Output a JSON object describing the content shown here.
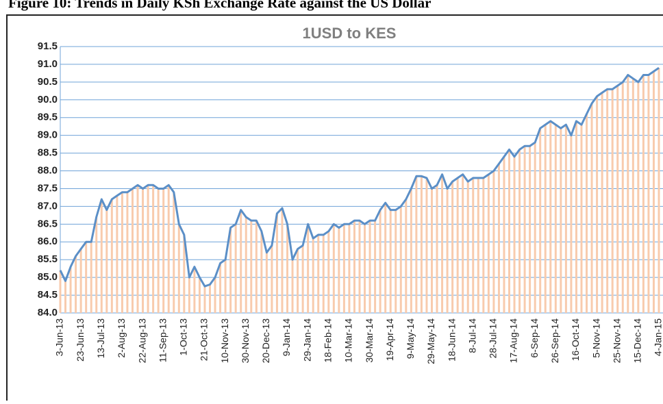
{
  "chart_data": {
    "type": "line",
    "caption": "Figure 10: Trends in Daily KSh Exchange Rate against the US Dollar",
    "title": "1USD to KES",
    "categories": [
      "3-Jun-13",
      null,
      null,
      null,
      "23-Jun-13",
      null,
      null,
      null,
      "13-Jul-13",
      null,
      null,
      null,
      "2-Aug-13",
      null,
      null,
      null,
      "22-Aug-13",
      null,
      null,
      null,
      "11-Sep-13",
      null,
      null,
      null,
      "1-Oct-13",
      null,
      null,
      null,
      "21-Oct-13",
      null,
      null,
      null,
      "10-Nov-13",
      null,
      null,
      null,
      "30-Nov-13",
      null,
      null,
      null,
      "20-Dec-13",
      null,
      null,
      null,
      "9-Jan-14",
      null,
      null,
      null,
      "29-Jan-14",
      null,
      null,
      null,
      "18-Feb-14",
      null,
      null,
      null,
      "10-Mar-14",
      null,
      null,
      null,
      "30-Mar-14",
      null,
      null,
      null,
      "19-Apr-14",
      null,
      null,
      null,
      "9-May-14",
      null,
      null,
      null,
      "29-May-14",
      null,
      null,
      null,
      "18-Jun-14",
      null,
      null,
      null,
      "8-Jul-14",
      null,
      null,
      null,
      "28-Jul-14",
      null,
      null,
      null,
      "17-Aug-14",
      null,
      null,
      null,
      "6-Sep-14",
      null,
      null,
      null,
      "26-Sep-14",
      null,
      null,
      null,
      "16-Oct-14",
      null,
      null,
      null,
      "5-Nov-14",
      null,
      null,
      null,
      "25-Nov-14",
      null,
      null,
      null,
      "15-Dec-14",
      null,
      null,
      null,
      "4-Jan-15"
    ],
    "series": [
      {
        "color": "#5b8fc7",
        "bar_color": "#f8cbad",
        "values": [
          85.2,
          84.9,
          85.3,
          85.6,
          85.8,
          86.0,
          86.0,
          86.7,
          87.2,
          86.9,
          87.2,
          87.3,
          87.4,
          87.4,
          87.5,
          87.6,
          87.5,
          87.6,
          87.6,
          87.5,
          87.5,
          87.6,
          87.4,
          86.5,
          86.2,
          85.0,
          85.3,
          85.0,
          84.75,
          84.8,
          85.0,
          85.4,
          85.5,
          86.4,
          86.5,
          86.9,
          86.7,
          86.6,
          86.6,
          86.3,
          85.7,
          85.9,
          86.8,
          86.95,
          86.5,
          85.5,
          85.8,
          85.9,
          86.5,
          86.1,
          86.2,
          86.2,
          86.3,
          86.5,
          86.4,
          86.5,
          86.5,
          86.6,
          86.6,
          86.5,
          86.6,
          86.6,
          86.9,
          87.1,
          86.9,
          86.9,
          87.0,
          87.2,
          87.5,
          87.85,
          87.85,
          87.8,
          87.5,
          87.6,
          87.9,
          87.5,
          87.7,
          87.8,
          87.9,
          87.7,
          87.8,
          87.8,
          87.8,
          87.9,
          88.0,
          88.2,
          88.4,
          88.6,
          88.4,
          88.6,
          88.7,
          88.7,
          88.8,
          89.2,
          89.3,
          89.4,
          89.3,
          89.2,
          89.3,
          89.0,
          89.4,
          89.3,
          89.6,
          89.9,
          90.1,
          90.2,
          90.3,
          90.3,
          90.4,
          90.5,
          90.7,
          90.6,
          90.5,
          90.7,
          90.7,
          90.8,
          90.9
        ]
      }
    ],
    "ylim": [
      84,
      91.5
    ],
    "yticks": [
      {
        "value": 84,
        "label": "84.0"
      },
      84.5,
      {
        "value": 85,
        "label": "85.0"
      },
      85.5,
      {
        "value": 86,
        "label": "86.0"
      },
      86.5,
      {
        "value": 87,
        "label": "87.0"
      },
      87.5,
      {
        "value": 88,
        "label": "88.0"
      },
      88.5,
      {
        "value": 89,
        "label": "89.0"
      },
      89.5,
      {
        "value": 90,
        "label": "90.0"
      },
      90.5,
      {
        "value": 91,
        "label": "91.0"
      },
      91.5
    ],
    "grid": true
  }
}
